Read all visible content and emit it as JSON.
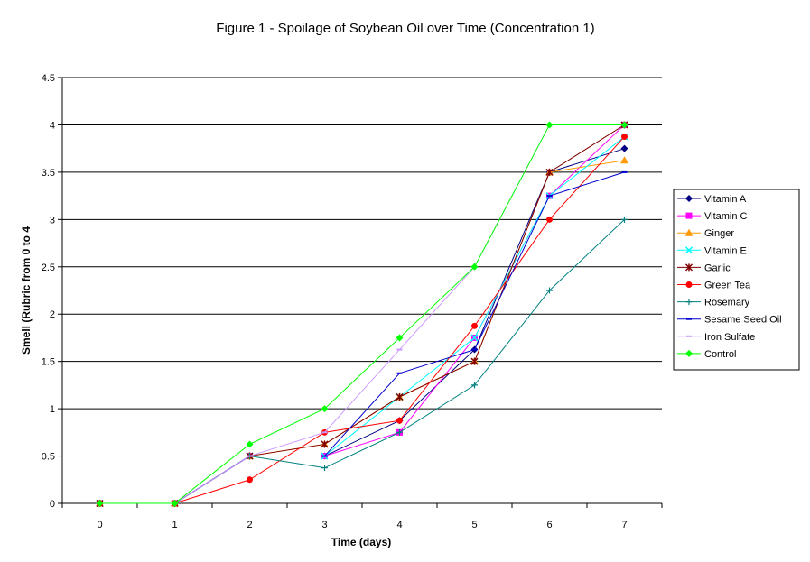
{
  "chart_data": {
    "type": "line",
    "title": "Figure 1 - Spoilage of Soybean Oil over Time (Concentration 1)",
    "xlabel": "Time (days)",
    "ylabel": "Smell (Rubric from 0 to 4",
    "x": [
      0,
      1,
      2,
      3,
      4,
      5,
      6,
      7
    ],
    "xticks": [
      "0",
      "1",
      "2",
      "3",
      "4",
      "5",
      "6",
      "7"
    ],
    "ylim": [
      0,
      4.5
    ],
    "yticks": [
      "0",
      "0.5",
      "1",
      "1.5",
      "2",
      "2.5",
      "3",
      "3.5",
      "4",
      "4.5"
    ],
    "grid": "horizontal",
    "legend": "right",
    "series": [
      {
        "name": "Vitamin A",
        "color": "#000080",
        "marker": "diamond",
        "values": [
          0,
          0,
          0.5,
          0.5,
          0.875,
          1.625,
          3.5,
          3.75
        ]
      },
      {
        "name": "Vitamin C",
        "color": "#ff00ff",
        "marker": "square",
        "values": [
          0,
          0,
          0.5,
          0.5,
          0.75,
          1.75,
          3.25,
          4.0
        ]
      },
      {
        "name": "Ginger",
        "color": "#ff9900",
        "marker": "triangle",
        "values": [
          0,
          0,
          0.5,
          0.625,
          1.125,
          1.5,
          3.5,
          3.625
        ]
      },
      {
        "name": "Vitamin E",
        "color": "#00ffff",
        "marker": "x",
        "values": [
          0,
          0,
          0.5,
          0.5,
          1.125,
          1.75,
          3.25,
          3.875
        ]
      },
      {
        "name": "Garlic",
        "color": "#800000",
        "marker": "star",
        "values": [
          0,
          0,
          0.5,
          0.625,
          1.125,
          1.5,
          3.5,
          4.0
        ]
      },
      {
        "name": "Green Tea",
        "color": "#ff0000",
        "marker": "circle",
        "values": [
          0,
          0,
          0.25,
          0.75,
          0.875,
          1.875,
          3.0,
          3.875
        ]
      },
      {
        "name": "Rosemary",
        "color": "#008080",
        "marker": "plus",
        "values": [
          0,
          0,
          0.5,
          0.375,
          0.75,
          1.25,
          2.25,
          3.0
        ]
      },
      {
        "name": "Sesame Seed Oil",
        "color": "#0000cc",
        "marker": "dash",
        "values": [
          0,
          0,
          0.5,
          0.5,
          1.375,
          1.625,
          3.25,
          3.5
        ]
      },
      {
        "name": "Iron Sulfate",
        "color": "#cc99ff",
        "marker": "dash",
        "values": [
          0,
          0,
          0.5,
          0.75,
          1.625,
          2.5,
          4.0,
          4.0
        ]
      },
      {
        "name": "Control",
        "color": "#00ff00",
        "marker": "diamond",
        "values": [
          0,
          0,
          0.625,
          1.0,
          1.75,
          2.5,
          4.0,
          4.0
        ]
      }
    ]
  }
}
